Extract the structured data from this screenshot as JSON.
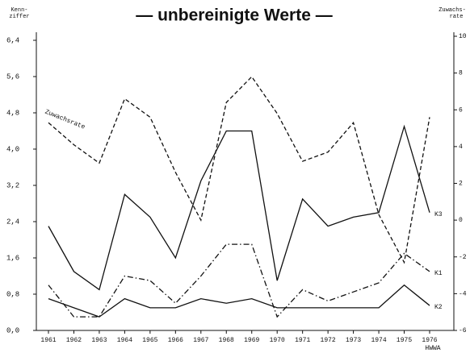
{
  "chart_data": {
    "type": "line",
    "title": "— unbereinigte Werte —",
    "ylabel": [
      "Kenn-",
      "ziffer"
    ],
    "y2label": [
      "Zuwachs-",
      "rate"
    ],
    "source": "HWWA",
    "categories": [
      "1961",
      "1962",
      "1963",
      "1964",
      "1965",
      "1966",
      "1967",
      "1968",
      "1969",
      "1970",
      "1971",
      "1972",
      "1973",
      "1974",
      "1975",
      "1976"
    ],
    "series": [
      {
        "name": "K3",
        "color": "#111111",
        "dash": "solid",
        "values": [
          2.3,
          1.3,
          0.9,
          3.0,
          2.5,
          1.6,
          3.3,
          4.4,
          4.4,
          1.1,
          2.9,
          2.3,
          2.5,
          2.6,
          4.5,
          2.6
        ]
      },
      {
        "name": "K1",
        "color": "#111111",
        "dash": "dashdot",
        "values": [
          1.0,
          0.3,
          0.3,
          1.2,
          1.1,
          0.6,
          1.2,
          1.9,
          1.9,
          0.3,
          0.9,
          0.65,
          0.85,
          1.05,
          1.7,
          1.3
        ]
      },
      {
        "name": "K2",
        "color": "#111111",
        "dash": "solid",
        "values": [
          0.7,
          0.5,
          0.3,
          0.7,
          0.5,
          0.5,
          0.7,
          0.6,
          0.7,
          0.5,
          0.5,
          0.5,
          0.5,
          0.5,
          1.0,
          0.55
        ]
      },
      {
        "name": "Zuwachsrate",
        "color": "#111111",
        "dash": "dashed",
        "axis": "y2",
        "values": [
          5.3,
          4.1,
          3.1,
          6.6,
          5.6,
          2.6,
          0.0,
          6.4,
          7.8,
          5.8,
          3.2,
          3.7,
          5.3,
          0.3,
          -2.3,
          5.6
        ]
      }
    ],
    "ylim": [
      0,
      6.4
    ],
    "yticks": [
      {
        "value": 0,
        "label": "0,0"
      },
      {
        "value": 0.8,
        "label": "0,8"
      },
      {
        "value": 1.6,
        "label": "1,6"
      },
      {
        "value": 2.4,
        "label": "2,4"
      },
      {
        "value": 3.2,
        "label": "3,2"
      },
      {
        "value": 4.0,
        "label": "4,0"
      },
      {
        "value": 4.8,
        "label": "4,8"
      },
      {
        "value": 5.6,
        "label": "5,6"
      },
      {
        "value": 6.4,
        "label": "6,4"
      }
    ],
    "y2lim": [
      -6,
      10
    ],
    "y2ticks": [
      -6,
      -4,
      -2,
      0,
      2,
      4,
      6,
      8,
      10
    ],
    "grid": false
  }
}
